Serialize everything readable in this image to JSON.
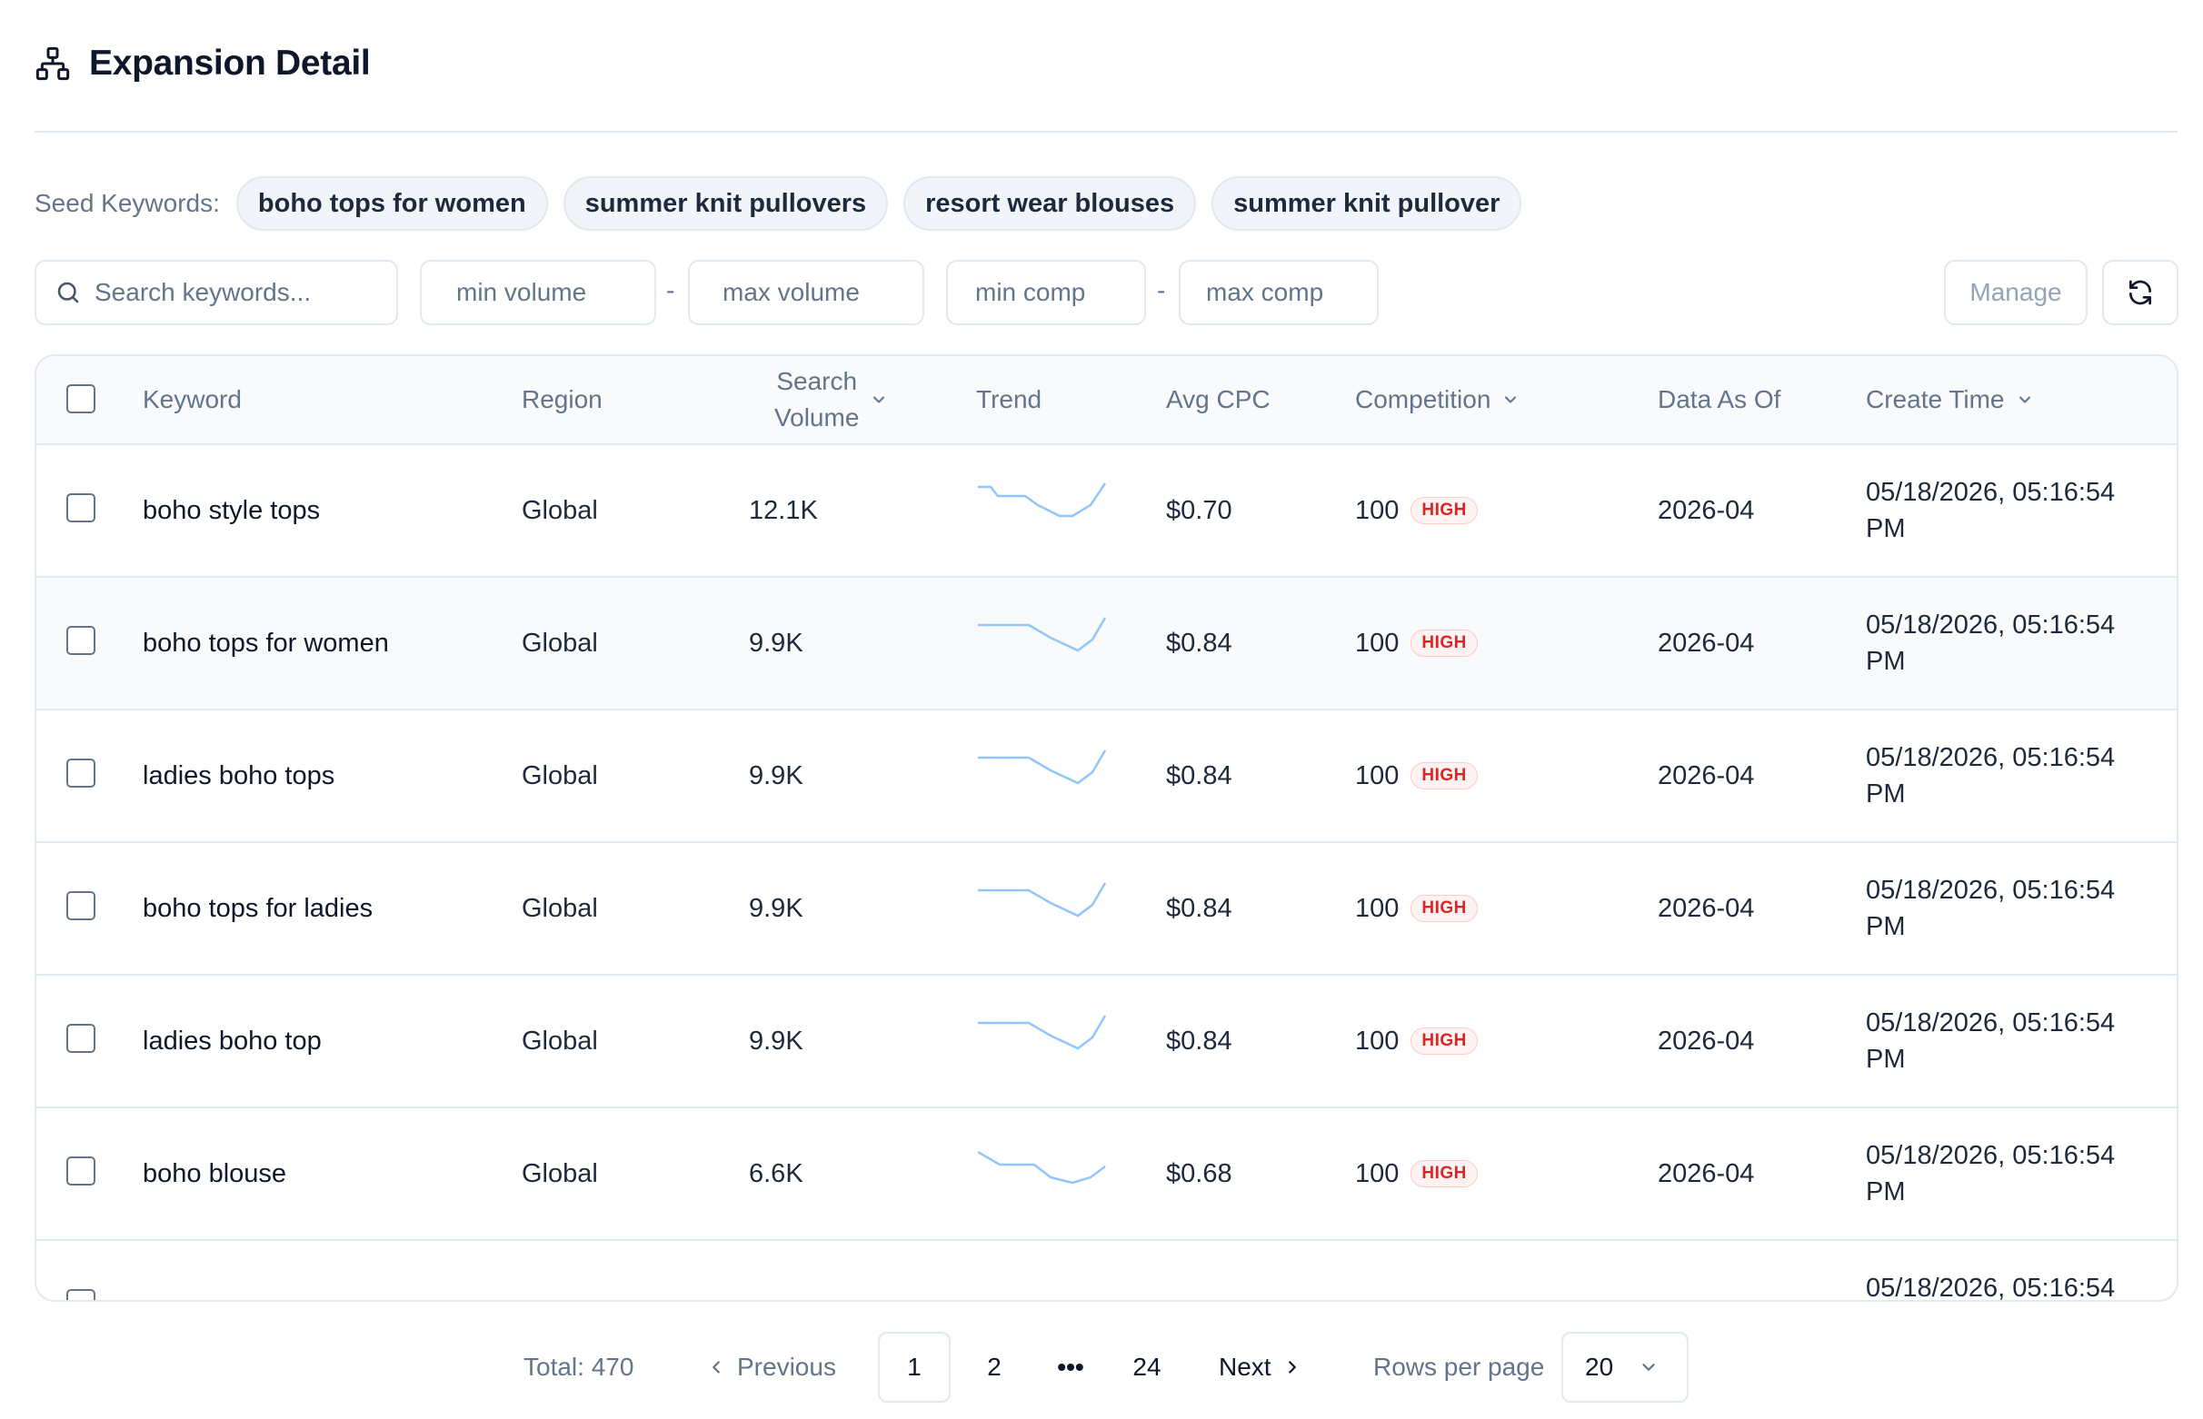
{
  "header": {
    "title": "Expansion Detail",
    "icon": "sitemap-icon"
  },
  "seeds": {
    "label": "Seed Keywords:",
    "chips": [
      "boho tops for women",
      "summer knit pullovers",
      "resort wear blouses",
      "summer knit pullover"
    ]
  },
  "filters": {
    "search_placeholder": "Search keywords...",
    "min_volume": "min volume",
    "max_volume": "max volume",
    "min_comp": "min comp",
    "max_comp": "max comp",
    "dash": "-"
  },
  "toolbar": {
    "manage_label": "Manage",
    "refresh_icon": "refresh-icon"
  },
  "table": {
    "columns": {
      "keyword": "Keyword",
      "region": "Region",
      "search_volume_1": "Search",
      "search_volume_2": "Volume",
      "trend": "Trend",
      "avg_cpc": "Avg CPC",
      "competition": "Competition",
      "data_as_of": "Data As Of",
      "create_time": "Create Time"
    },
    "rows": [
      {
        "keyword": "boho style tops",
        "region": "Global",
        "volume": "12.1K",
        "cpc": "$0.70",
        "competition": "100",
        "level": "HIGH",
        "data_as_of": "2026-04",
        "create_time": "05/18/2026, 05:16:54 PM"
      },
      {
        "keyword": "boho tops for women",
        "region": "Global",
        "volume": "9.9K",
        "cpc": "$0.84",
        "competition": "100",
        "level": "HIGH",
        "data_as_of": "2026-04",
        "create_time": "05/18/2026, 05:16:54 PM"
      },
      {
        "keyword": "ladies boho tops",
        "region": "Global",
        "volume": "9.9K",
        "cpc": "$0.84",
        "competition": "100",
        "level": "HIGH",
        "data_as_of": "2026-04",
        "create_time": "05/18/2026, 05:16:54 PM"
      },
      {
        "keyword": "boho tops for ladies",
        "region": "Global",
        "volume": "9.9K",
        "cpc": "$0.84",
        "competition": "100",
        "level": "HIGH",
        "data_as_of": "2026-04",
        "create_time": "05/18/2026, 05:16:54 PM"
      },
      {
        "keyword": "ladies boho top",
        "region": "Global",
        "volume": "9.9K",
        "cpc": "$0.84",
        "competition": "100",
        "level": "HIGH",
        "data_as_of": "2026-04",
        "create_time": "05/18/2026, 05:16:54 PM"
      },
      {
        "keyword": "boho blouse",
        "region": "Global",
        "volume": "6.6K",
        "cpc": "$0.68",
        "competition": "100",
        "level": "HIGH",
        "data_as_of": "2026-04",
        "create_time": "05/18/2026, 05:16:54 PM"
      },
      {
        "keyword": "",
        "region": "",
        "volume": "",
        "cpc": "",
        "competition": "",
        "level": "",
        "data_as_of": "",
        "create_time": "05/18/2026, 05:16:54"
      }
    ]
  },
  "pagination": {
    "total": "Total: 470",
    "previous": "Previous",
    "pages": [
      "1",
      "2",
      "•••",
      "24"
    ],
    "next": "Next",
    "rows_per_page_label": "Rows per page",
    "rows_per_page_value": "20"
  },
  "colors": {
    "accent_high": "#dc2626",
    "sparkline": "#93c5fd",
    "border": "#e2e8f0"
  }
}
